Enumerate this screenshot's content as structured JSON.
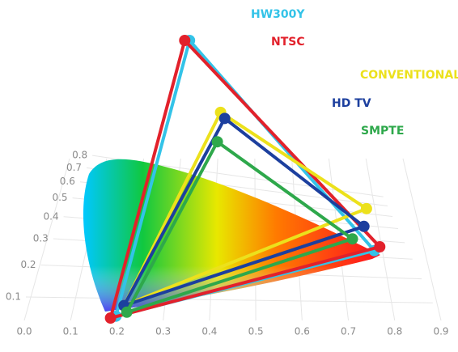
{
  "chart_data": {
    "type": "gamut",
    "xlim": [
      0,
      0.9
    ],
    "ylim": [
      0,
      0.8
    ],
    "xticks": [
      {
        "value": 0,
        "label": "0.0"
      },
      0.1,
      0.2,
      0.3,
      0.4,
      0.5,
      0.6,
      0.7,
      0.8,
      0.9
    ],
    "yticks": [
      0.1,
      0.2,
      0.3,
      0.4,
      0.5,
      0.6,
      0.7,
      0.8
    ],
    "grid": true,
    "series": [
      {
        "name": "HW300Y",
        "color": "#33c3e8",
        "x": [
          0.66,
          0.22,
          0.15
        ],
        "values": [
          0.32,
          0.71,
          0.09
        ]
      },
      {
        "name": "NTSC",
        "color": "#e2212b",
        "x": [
          0.67,
          0.21,
          0.14
        ],
        "values": [
          0.33,
          0.71,
          0.08
        ]
      },
      {
        "name": "CONVENTIONAL LAMP",
        "color": "#ece11c",
        "x": [
          0.63,
          0.3,
          0.16
        ],
        "values": [
          0.42,
          0.6,
          0.14
        ]
      },
      {
        "name": "HD TV",
        "color": "#1c3f9e",
        "x": [
          0.63,
          0.31,
          0.16
        ],
        "values": [
          0.38,
          0.59,
          0.14
        ]
      },
      {
        "name": "SMPTE",
        "color": "#2ea84b",
        "x": [
          0.61,
          0.3,
          0.17
        ],
        "values": [
          0.35,
          0.55,
          0.11
        ]
      }
    ]
  }
}
